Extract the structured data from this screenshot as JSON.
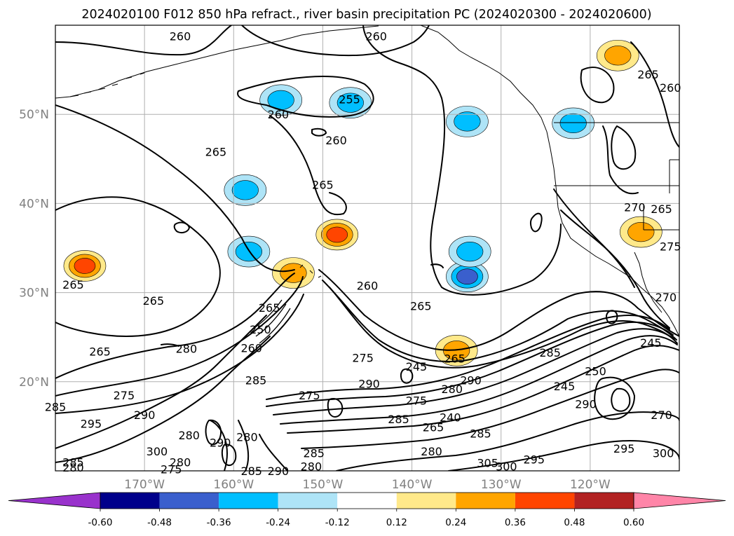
{
  "chart_data": {
    "type": "contour",
    "title": "2024020100 F012 850 hPa refract., river basin precipitation PC (2024020300 - 2024020600)",
    "lat_ticks": [
      "20°N",
      "30°N",
      "40°N",
      "50°N"
    ],
    "lon_ticks": [
      "170°W",
      "160°W",
      "150°W",
      "140°W",
      "130°W",
      "120°W"
    ],
    "map_extent": {
      "lon": [
        -180,
        -110
      ],
      "lat": [
        10,
        60
      ]
    },
    "grid": true,
    "colorbar": {
      "ticks": [
        "-0.60",
        "-0.48",
        "-0.36",
        "-0.24",
        "-0.12",
        "0.12",
        "0.24",
        "0.36",
        "0.48",
        "0.60"
      ],
      "levels": [
        -0.6,
        -0.48,
        -0.36,
        -0.24,
        -0.12,
        0.12,
        0.24,
        0.36,
        0.48,
        0.6
      ],
      "colors": [
        "#9932cc",
        "#00008b",
        "#3a5fcd",
        "#00bfff",
        "#aee4f7",
        "#ffffff",
        "#ffe98a",
        "#ffa500",
        "#ff4500",
        "#b22222",
        "#ff85a8"
      ],
      "extend": "both"
    },
    "contour_labels": [
      {
        "text": "260",
        "lon": -166,
        "lat": 58.8
      },
      {
        "text": "260",
        "lon": -144,
        "lat": 58.8
      },
      {
        "text": "255",
        "lon": -147,
        "lat": 51.7
      },
      {
        "text": "260",
        "lon": -155,
        "lat": 50.0
      },
      {
        "text": "260",
        "lon": -148.5,
        "lat": 47.1
      },
      {
        "text": "265",
        "lon": -162,
        "lat": 45.8
      },
      {
        "text": "265",
        "lon": -150,
        "lat": 42.1
      },
      {
        "text": "265",
        "lon": -113.5,
        "lat": 54.5
      },
      {
        "text": "260",
        "lon": -111,
        "lat": 53.0
      },
      {
        "text": "270",
        "lon": -115,
        "lat": 39.6
      },
      {
        "text": "265",
        "lon": -112,
        "lat": 39.4
      },
      {
        "text": "275",
        "lon": -111,
        "lat": 35.2
      },
      {
        "text": "270",
        "lon": -111.5,
        "lat": 29.5
      },
      {
        "text": "245",
        "lon": -113.2,
        "lat": 24.4
      },
      {
        "text": "265",
        "lon": -178,
        "lat": 30.9
      },
      {
        "text": "265",
        "lon": -169,
        "lat": 29.1
      },
      {
        "text": "265",
        "lon": -175,
        "lat": 23.4
      },
      {
        "text": "280",
        "lon": -165.3,
        "lat": 23.7
      },
      {
        "text": "265",
        "lon": -156,
        "lat": 28.3
      },
      {
        "text": "250",
        "lon": -157,
        "lat": 25.9
      },
      {
        "text": "260",
        "lon": -158,
        "lat": 23.8
      },
      {
        "text": "260",
        "lon": -145,
        "lat": 30.8
      },
      {
        "text": "265",
        "lon": -139,
        "lat": 28.5
      },
      {
        "text": "275",
        "lon": -145.5,
        "lat": 22.7
      },
      {
        "text": "245",
        "lon": -139.5,
        "lat": 21.7
      },
      {
        "text": "265",
        "lon": -135.2,
        "lat": 22.6
      },
      {
        "text": "290",
        "lon": -144.8,
        "lat": 19.8
      },
      {
        "text": "275",
        "lon": -151.5,
        "lat": 18.5
      },
      {
        "text": "285",
        "lon": -157.5,
        "lat": 20.2
      },
      {
        "text": "275",
        "lon": -172.3,
        "lat": 18.5
      },
      {
        "text": "290",
        "lon": -170,
        "lat": 16.3
      },
      {
        "text": "295",
        "lon": -176,
        "lat": 15.3
      },
      {
        "text": "285",
        "lon": -180,
        "lat": 17.2
      },
      {
        "text": "280",
        "lon": -165,
        "lat": 14.0
      },
      {
        "text": "290",
        "lon": -161.5,
        "lat": 13.2
      },
      {
        "text": "280",
        "lon": -158.5,
        "lat": 13.8
      },
      {
        "text": "300",
        "lon": -168.6,
        "lat": 12.2
      },
      {
        "text": "280",
        "lon": -166,
        "lat": 11.0
      },
      {
        "text": "275",
        "lon": -167,
        "lat": 10.2
      },
      {
        "text": "285",
        "lon": -151,
        "lat": 12.0
      },
      {
        "text": "280",
        "lon": -151.3,
        "lat": 10.5
      },
      {
        "text": "285",
        "lon": -158,
        "lat": 10.0
      },
      {
        "text": "290",
        "lon": -155,
        "lat": 10.0
      },
      {
        "text": "280",
        "lon": -178,
        "lat": 10.4
      },
      {
        "text": "285",
        "lon": -178,
        "lat": 11.0
      },
      {
        "text": "275",
        "lon": -139.5,
        "lat": 17.9
      },
      {
        "text": "280",
        "lon": -135.5,
        "lat": 19.2
      },
      {
        "text": "290",
        "lon": -133.4,
        "lat": 20.2
      },
      {
        "text": "285",
        "lon": -141.5,
        "lat": 15.8
      },
      {
        "text": "240",
        "lon": -135.7,
        "lat": 16.0
      },
      {
        "text": "265",
        "lon": -137.6,
        "lat": 14.9
      },
      {
        "text": "285",
        "lon": -132.3,
        "lat": 14.2
      },
      {
        "text": "280",
        "lon": -137.8,
        "lat": 12.2
      },
      {
        "text": "305",
        "lon": -131.5,
        "lat": 10.9
      },
      {
        "text": "300",
        "lon": -129.4,
        "lat": 10.5
      },
      {
        "text": "295",
        "lon": -126.3,
        "lat": 11.3
      },
      {
        "text": "285",
        "lon": -124.5,
        "lat": 23.3
      },
      {
        "text": "245",
        "lon": -122.9,
        "lat": 19.5
      },
      {
        "text": "250",
        "lon": -119.4,
        "lat": 21.2
      },
      {
        "text": "290",
        "lon": -120.5,
        "lat": 17.5
      },
      {
        "text": "270",
        "lon": -112,
        "lat": 16.3
      },
      {
        "text": "295",
        "lon": -116.2,
        "lat": 12.5
      },
      {
        "text": "300",
        "lon": -111.8,
        "lat": 12.0
      }
    ],
    "shaded_regions": [
      {
        "value": 0.4,
        "lon": -176.7,
        "lat": 33.0
      },
      {
        "value": 0.36,
        "lon": -148.4,
        "lat": 36.5
      },
      {
        "value": 0.3,
        "lon": -153.3,
        "lat": 32.2
      },
      {
        "value": 0.3,
        "lon": -114.3,
        "lat": 36.8
      },
      {
        "value": 0.28,
        "lon": -116.9,
        "lat": 56.6
      },
      {
        "value": 0.26,
        "lon": -135,
        "lat": 23.5
      },
      {
        "value": -0.4,
        "lon": -133.8,
        "lat": 31.8
      },
      {
        "value": -0.32,
        "lon": -133.5,
        "lat": 34.6
      },
      {
        "value": -0.3,
        "lon": -146.9,
        "lat": 51.3
      },
      {
        "value": -0.28,
        "lon": -154.7,
        "lat": 51.6
      },
      {
        "value": -0.26,
        "lon": -133.8,
        "lat": 49.2
      },
      {
        "value": -0.26,
        "lon": -121.9,
        "lat": 49.0
      },
      {
        "value": -0.24,
        "lon": -158.3,
        "lat": 34.6
      },
      {
        "value": -0.24,
        "lon": -158.7,
        "lat": 41.5
      }
    ]
  }
}
